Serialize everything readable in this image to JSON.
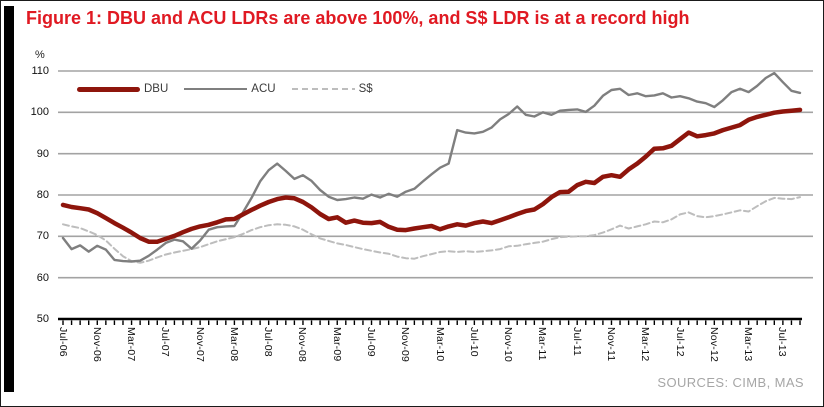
{
  "figure": {
    "title": "Figure 1: DBU and ACU LDRs are above 100%, and S$ LDR is at a record high",
    "source": "SOURCES: CIMB, MAS",
    "colors": {
      "title": "#E01922",
      "grid": "#A3A3A3",
      "axis": "#000000",
      "source_text": "#A6A6A6",
      "dbu": "#8E150C",
      "acu": "#7F7F7F",
      "sgd": "#BDBDBD"
    }
  },
  "chart_data": {
    "type": "line",
    "title": "Figure 1: DBU and ACU LDRs are above 100%, and S$ LDR is at a record high",
    "unit_label": "%",
    "ylim": [
      50,
      110
    ],
    "yticks": [
      50,
      60,
      70,
      80,
      90,
      100,
      110
    ],
    "grid": "horizontal",
    "legend_position": "top-left-inside",
    "x_frequency": "monthly",
    "x_first": "Jul-06",
    "x_tick_label_interval_months": 4,
    "x_tick_labels": [
      "Jul-06",
      "Nov-06",
      "Mar-07",
      "Jul-07",
      "Nov-07",
      "Mar-08",
      "Jul-08",
      "Nov-08",
      "Mar-09",
      "Jul-09",
      "Nov-09",
      "Mar-10",
      "Jul-10",
      "Nov-10",
      "Mar-11",
      "Jul-11",
      "Nov-11",
      "Mar-12",
      "Jul-12",
      "Nov-12",
      "Mar-13",
      "Jul-13"
    ],
    "series": [
      {
        "name": "S$",
        "color": "#BDBDBD",
        "style": "dashed",
        "width": 2,
        "values": [
          72.9,
          72.4,
          72.0,
          71.2,
          70.3,
          69.0,
          67.0,
          65.2,
          64.0,
          63.6,
          64.1,
          64.9,
          65.6,
          66.1,
          66.5,
          66.9,
          67.4,
          68.1,
          68.8,
          69.3,
          69.8,
          70.6,
          71.5,
          72.2,
          72.7,
          72.9,
          72.8,
          72.4,
          71.6,
          70.5,
          69.5,
          68.9,
          68.3,
          67.9,
          67.4,
          66.9,
          66.5,
          66.1,
          65.8,
          65.1,
          64.7,
          64.6,
          65.2,
          65.7,
          66.2,
          66.4,
          66.2,
          66.4,
          66.2,
          66.4,
          66.6,
          66.9,
          67.6,
          67.7,
          68.1,
          68.4,
          68.7,
          69.3,
          69.8,
          69.9,
          70.0,
          70.0,
          70.3,
          70.9,
          71.7,
          72.6,
          71.9,
          72.4,
          72.9,
          73.6,
          73.4,
          74.1,
          75.3,
          75.8,
          74.9,
          74.6,
          74.9,
          75.3,
          75.8,
          76.3,
          76.0,
          77.3,
          78.5,
          79.3,
          79.1,
          79.0,
          79.5
        ]
      },
      {
        "name": "ACU",
        "color": "#7F7F7F",
        "style": "solid",
        "width": 2.4,
        "values": [
          69.6,
          66.9,
          67.8,
          66.3,
          67.7,
          66.8,
          64.3,
          64.0,
          63.9,
          64.1,
          65.3,
          66.8,
          68.4,
          69.2,
          68.8,
          67.0,
          69.0,
          71.6,
          72.2,
          72.4,
          72.5,
          75.8,
          79.3,
          83.3,
          86.0,
          87.6,
          85.8,
          83.9,
          84.8,
          83.4,
          81.2,
          79.6,
          78.8,
          79.0,
          79.4,
          79.1,
          80.1,
          79.4,
          80.3,
          79.6,
          80.8,
          81.5,
          83.3,
          85.0,
          86.6,
          87.6,
          95.7,
          95.1,
          94.9,
          95.3,
          96.3,
          98.3,
          99.6,
          101.4,
          99.4,
          99.0,
          100.0,
          99.4,
          100.4,
          100.6,
          100.7,
          100.1,
          101.6,
          104.0,
          105.4,
          105.7,
          104.2,
          104.6,
          103.9,
          104.1,
          104.6,
          103.6,
          103.9,
          103.4,
          102.6,
          102.2,
          101.3,
          102.9,
          104.9,
          105.7,
          104.9,
          106.4,
          108.3,
          109.5,
          107.3,
          105.2,
          104.7
        ]
      },
      {
        "name": "DBU",
        "color": "#8E150C",
        "style": "solid",
        "width": 4.5,
        "values": [
          77.6,
          77.1,
          76.8,
          76.5,
          75.6,
          74.4,
          73.2,
          72.1,
          70.9,
          69.6,
          68.7,
          68.7,
          69.4,
          70.1,
          71.0,
          71.8,
          72.4,
          72.8,
          73.4,
          74.1,
          74.2,
          75.3,
          76.4,
          77.4,
          78.3,
          79.0,
          79.4,
          79.2,
          78.3,
          77.0,
          75.4,
          74.2,
          74.6,
          73.3,
          73.8,
          73.3,
          73.2,
          73.5,
          72.3,
          71.6,
          71.5,
          71.9,
          72.2,
          72.5,
          71.7,
          72.4,
          72.9,
          72.6,
          73.2,
          73.6,
          73.2,
          73.9,
          74.6,
          75.4,
          76.1,
          76.5,
          77.8,
          79.5,
          80.7,
          80.8,
          82.4,
          83.2,
          82.9,
          84.4,
          84.8,
          84.4,
          86.2,
          87.6,
          89.3,
          91.2,
          91.3,
          91.9,
          93.5,
          95.1,
          94.2,
          94.5,
          94.9,
          95.7,
          96.3,
          96.9,
          98.2,
          98.9,
          99.4,
          99.9,
          100.2,
          100.4,
          100.6
        ]
      }
    ],
    "legend_order": [
      "DBU",
      "ACU",
      "S$"
    ]
  }
}
